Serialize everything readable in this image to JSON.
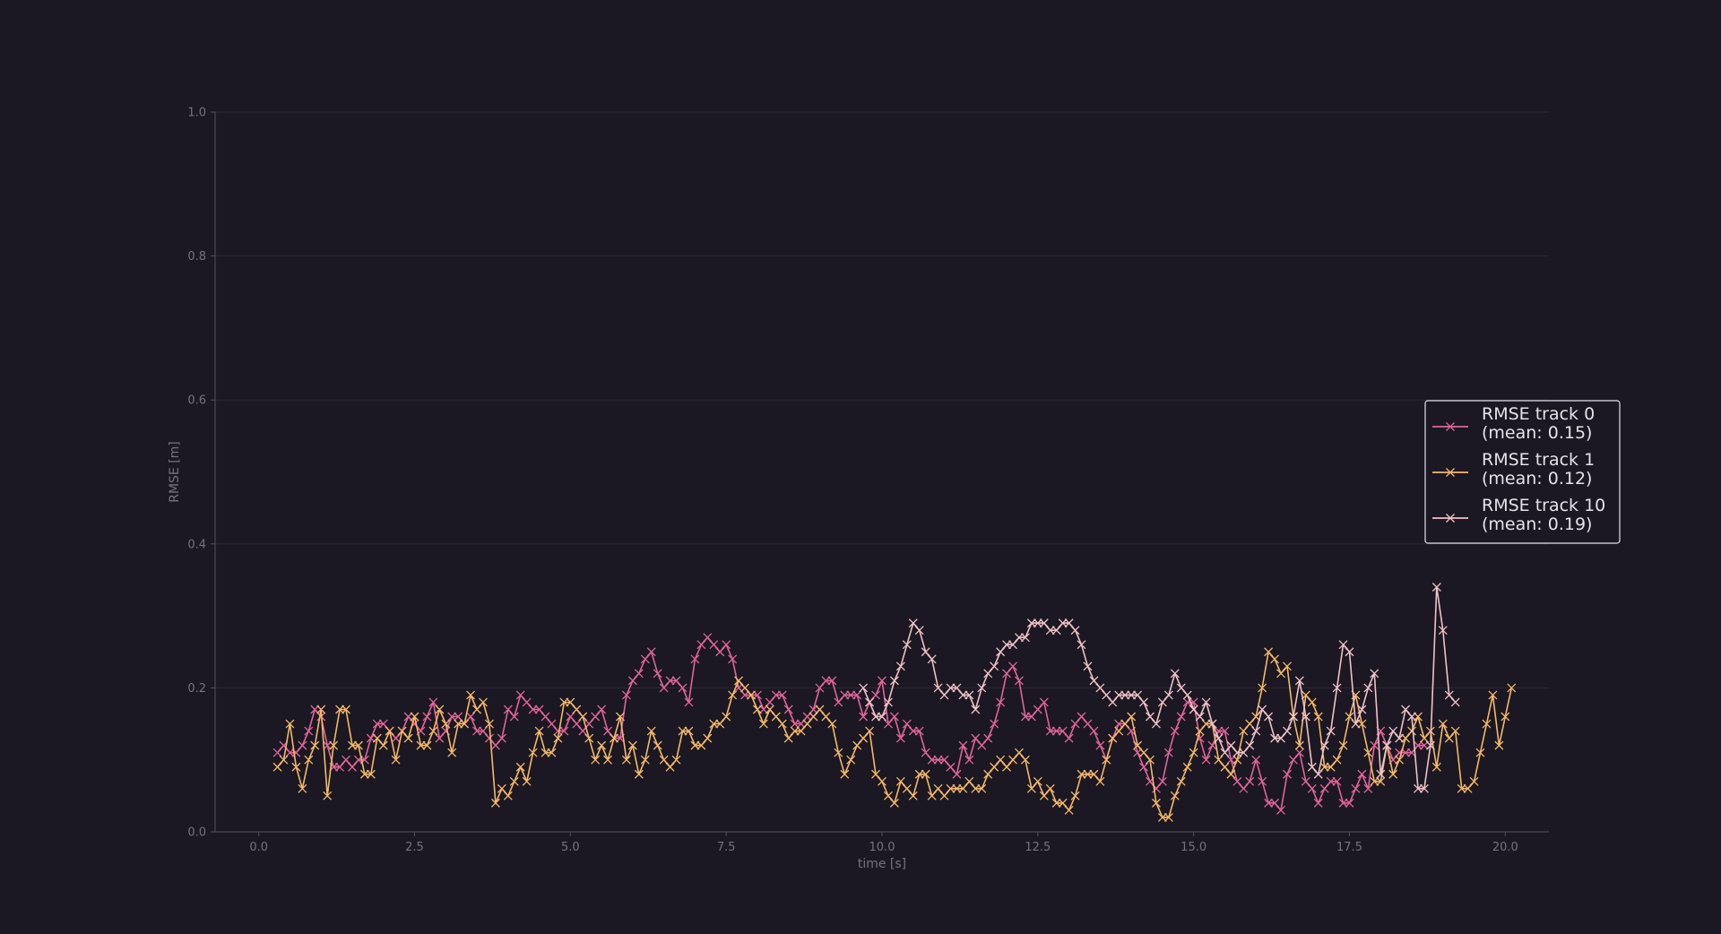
{
  "chart_data": {
    "type": "line",
    "xlabel": "time [s]",
    "ylabel": "RMSE [m]",
    "xlim": [
      -0.7,
      20.7
    ],
    "ylim": [
      0.0,
      1.0
    ],
    "x_ticks": [
      0.0,
      2.5,
      5.0,
      7.5,
      10.0,
      12.5,
      15.0,
      17.5,
      20.0
    ],
    "x_tick_labels": [
      "0.0",
      "2.5",
      "5.0",
      "7.5",
      "10.0",
      "12.5",
      "15.0",
      "17.5",
      "20.0"
    ],
    "y_ticks": [
      0.0,
      0.2,
      0.4,
      0.6,
      0.8,
      1.0
    ],
    "y_tick_labels": [
      "0.0",
      "0.2",
      "0.4",
      "0.6",
      "0.8",
      "1.0"
    ],
    "grid": "horizontal",
    "legend_placement": "right",
    "marker": "x",
    "series": [
      {
        "name": "RMSE track 0\n(mean: 0.15)",
        "color": "#e0659a",
        "x_start": 0.3,
        "x_step": 0.1,
        "values": [
          0.11,
          0.12,
          0.11,
          0.11,
          0.12,
          0.14,
          0.17,
          0.16,
          0.12,
          0.09,
          0.09,
          0.1,
          0.09,
          0.1,
          0.1,
          0.13,
          0.15,
          0.15,
          0.14,
          0.13,
          0.14,
          0.16,
          0.15,
          0.14,
          0.16,
          0.18,
          0.13,
          0.14,
          0.16,
          0.16,
          0.15,
          0.16,
          0.14,
          0.14,
          0.13,
          0.12,
          0.13,
          0.17,
          0.16,
          0.19,
          0.18,
          0.17,
          0.17,
          0.16,
          0.15,
          0.14,
          0.14,
          0.16,
          0.15,
          0.14,
          0.15,
          0.16,
          0.17,
          0.14,
          0.13,
          0.13,
          0.19,
          0.21,
          0.22,
          0.24,
          0.25,
          0.22,
          0.2,
          0.21,
          0.21,
          0.2,
          0.18,
          0.24,
          0.26,
          0.27,
          0.26,
          0.25,
          0.26,
          0.24,
          0.2,
          0.19,
          0.19,
          0.19,
          0.17,
          0.18,
          0.19,
          0.19,
          0.17,
          0.15,
          0.15,
          0.16,
          0.17,
          0.2,
          0.21,
          0.21,
          0.18,
          0.19,
          0.19,
          0.19,
          0.16,
          0.18,
          0.19,
          0.21,
          0.15,
          0.16,
          0.13,
          0.15,
          0.14,
          0.14,
          0.11,
          0.1,
          0.1,
          0.1,
          0.09,
          0.08,
          0.12,
          0.1,
          0.13,
          0.12,
          0.13,
          0.15,
          0.18,
          0.22,
          0.23,
          0.21,
          0.16,
          0.16,
          0.17,
          0.18,
          0.14,
          0.14,
          0.14,
          0.13,
          0.15,
          0.16,
          0.15,
          0.14,
          0.12,
          0.1,
          0.13,
          0.15,
          0.15,
          0.14,
          0.11,
          0.09,
          0.07,
          0.06,
          0.07,
          0.11,
          0.14,
          0.16,
          0.18,
          0.18,
          0.13,
          0.1,
          0.12,
          0.14,
          0.14,
          0.1,
          0.07,
          0.06,
          0.07,
          0.1,
          0.07,
          0.04,
          0.04,
          0.03,
          0.08,
          0.1,
          0.11,
          0.07,
          0.06,
          0.04,
          0.06,
          0.07,
          0.07,
          0.04,
          0.04,
          0.06,
          0.08,
          0.06,
          0.12,
          0.14,
          0.12,
          0.1,
          0.11,
          0.11,
          0.11,
          0.12,
          0.12
        ]
      },
      {
        "name": "RMSE track 1\n(mean: 0.12)",
        "color": "#f5b96a",
        "x_start": 0.3,
        "x_step": 0.1,
        "values": [
          0.09,
          0.1,
          0.15,
          0.09,
          0.06,
          0.1,
          0.12,
          0.17,
          0.05,
          0.12,
          0.17,
          0.17,
          0.12,
          0.12,
          0.08,
          0.08,
          0.13,
          0.12,
          0.14,
          0.1,
          0.14,
          0.13,
          0.16,
          0.12,
          0.12,
          0.14,
          0.17,
          0.15,
          0.11,
          0.15,
          0.15,
          0.19,
          0.17,
          0.18,
          0.15,
          0.04,
          0.06,
          0.05,
          0.07,
          0.09,
          0.07,
          0.11,
          0.14,
          0.11,
          0.11,
          0.13,
          0.18,
          0.18,
          0.17,
          0.16,
          0.13,
          0.1,
          0.12,
          0.1,
          0.13,
          0.16,
          0.1,
          0.12,
          0.08,
          0.1,
          0.14,
          0.12,
          0.1,
          0.09,
          0.1,
          0.14,
          0.14,
          0.12,
          0.12,
          0.13,
          0.15,
          0.15,
          0.16,
          0.19,
          0.21,
          0.2,
          0.19,
          0.17,
          0.15,
          0.17,
          0.16,
          0.15,
          0.13,
          0.14,
          0.14,
          0.15,
          0.16,
          0.17,
          0.16,
          0.15,
          0.11,
          0.08,
          0.1,
          0.12,
          0.13,
          0.14,
          0.08,
          0.07,
          0.05,
          0.04,
          0.07,
          0.06,
          0.05,
          0.08,
          0.08,
          0.05,
          0.06,
          0.05,
          0.06,
          0.06,
          0.06,
          0.07,
          0.06,
          0.06,
          0.08,
          0.09,
          0.1,
          0.09,
          0.1,
          0.11,
          0.1,
          0.06,
          0.07,
          0.05,
          0.06,
          0.04,
          0.04,
          0.03,
          0.05,
          0.08,
          0.08,
          0.08,
          0.07,
          0.1,
          0.13,
          0.14,
          0.15,
          0.16,
          0.12,
          0.11,
          0.1,
          0.04,
          0.02,
          0.02,
          0.05,
          0.07,
          0.09,
          0.11,
          0.14,
          0.15,
          0.15,
          0.1,
          0.09,
          0.08,
          0.1,
          0.14,
          0.15,
          0.16,
          0.2,
          0.25,
          0.24,
          0.22,
          0.23,
          0.16,
          0.12,
          0.19,
          0.18,
          0.16,
          0.09,
          0.09,
          0.1,
          0.12,
          0.16,
          0.19,
          0.15,
          0.11,
          0.07,
          0.07,
          0.12,
          0.08,
          0.1,
          0.13,
          0.14,
          0.16,
          0.13,
          0.14,
          0.09,
          0.15,
          0.13,
          0.14,
          0.06,
          0.06,
          0.07,
          0.11,
          0.15,
          0.19,
          0.12,
          0.16,
          0.2
        ]
      },
      {
        "name": "RMSE track 10\n(mean: 0.19)",
        "color": "#f0c2c6",
        "x_start": 9.7,
        "x_step": 0.1,
        "values": [
          0.2,
          0.18,
          0.16,
          0.16,
          0.18,
          0.21,
          0.23,
          0.26,
          0.29,
          0.28,
          0.25,
          0.24,
          0.2,
          0.19,
          0.2,
          0.2,
          0.19,
          0.19,
          0.17,
          0.2,
          0.22,
          0.23,
          0.25,
          0.26,
          0.26,
          0.27,
          0.27,
          0.29,
          0.29,
          0.29,
          0.28,
          0.28,
          0.29,
          0.29,
          0.28,
          0.26,
          0.23,
          0.21,
          0.2,
          0.19,
          0.18,
          0.19,
          0.19,
          0.19,
          0.19,
          0.18,
          0.16,
          0.15,
          0.18,
          0.19,
          0.22,
          0.2,
          0.19,
          0.17,
          0.16,
          0.18,
          0.15,
          0.13,
          0.11,
          0.12,
          0.11,
          0.11,
          0.12,
          0.14,
          0.17,
          0.16,
          0.13,
          0.13,
          0.14,
          0.16,
          0.21,
          0.16,
          0.09,
          0.08,
          0.12,
          0.14,
          0.2,
          0.26,
          0.25,
          0.15,
          0.17,
          0.2,
          0.22,
          0.08,
          0.12,
          0.14,
          0.13,
          0.17,
          0.16,
          0.06,
          0.06,
          0.12,
          0.34,
          0.28,
          0.19,
          0.18
        ]
      }
    ]
  }
}
